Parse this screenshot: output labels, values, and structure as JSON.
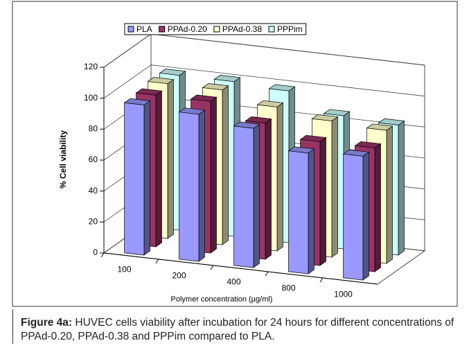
{
  "chart_data": {
    "type": "bar3d",
    "y_label": "% Cell viability",
    "x_label": "Polymer concentration (µg/ml)",
    "categories": [
      "100",
      "200",
      "400",
      "800",
      "1000"
    ],
    "series": [
      {
        "name": "PLA",
        "color": "#9999ff",
        "values": [
          97,
          95,
          90,
          78,
          80
        ]
      },
      {
        "name": "PPAd-0.20",
        "color": "#993366",
        "values": [
          98,
          98,
          88,
          80,
          80
        ]
      },
      {
        "name": "PPAd-0.38",
        "color": "#ffffcc",
        "values": [
          100,
          100,
          93,
          88,
          86
        ]
      },
      {
        "name": "PPPim",
        "color": "#ccffff",
        "values": [
          100,
          100,
          98,
          86,
          84
        ]
      }
    ],
    "ylim": [
      0,
      120
    ],
    "yticks": [
      0,
      20,
      40,
      60,
      80,
      100,
      120
    ],
    "grid": true,
    "legend": "top"
  },
  "caption": {
    "label": "Figure 4a:",
    "text": "HUVEC cells viability after incubation for 24 hours for different concentrations of PPAd-0.20, PPAd-0.38 and PPPim compared to PLA."
  }
}
